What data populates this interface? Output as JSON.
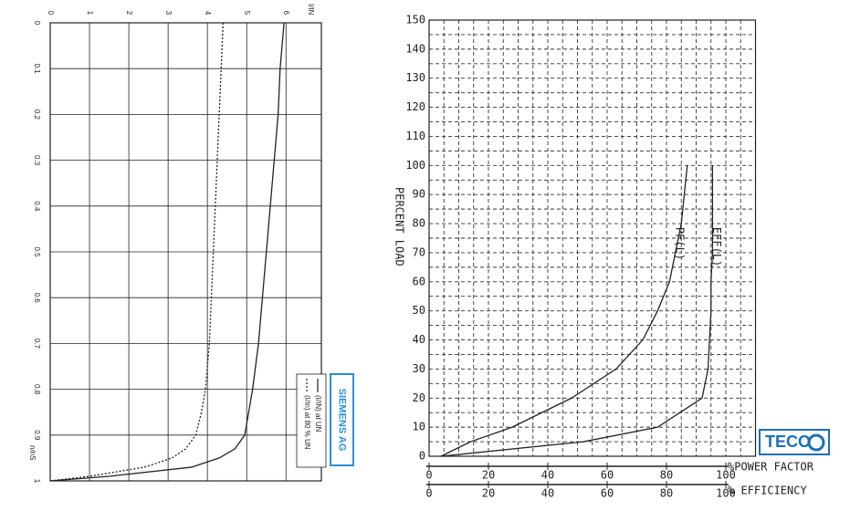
{
  "chart_data": [
    {
      "type": "line",
      "logo": "SIEMENS AG",
      "xlabel": "n/nS",
      "ylabel": "I/IN",
      "x": [
        0,
        0.1,
        0.2,
        0.3,
        0.4,
        0.5,
        0.6,
        0.7,
        0.8,
        0.85,
        0.9,
        0.93,
        0.95,
        0.97,
        0.99,
        1
      ],
      "series": [
        {
          "name": "(I/IN) at UN",
          "color": "#222222",
          "style": "solid",
          "values": [
            5.95,
            5.85,
            5.8,
            5.7,
            5.6,
            5.5,
            5.4,
            5.3,
            5.15,
            5.05,
            4.95,
            4.7,
            4.3,
            3.6,
            1.5,
            0
          ]
        },
        {
          "name": "(I/In) at 80 % UN",
          "color": "#222222",
          "style": "dotted",
          "values": [
            4.4,
            4.35,
            4.3,
            4.25,
            4.2,
            4.15,
            4.1,
            4.05,
            3.95,
            3.85,
            3.7,
            3.45,
            3.1,
            2.4,
            1.0,
            0
          ]
        }
      ],
      "xlim": [
        0,
        1
      ],
      "xticks": [
        0,
        0.1,
        0.2,
        0.3,
        0.4,
        0.5,
        0.6,
        0.7,
        0.8,
        0.9,
        1
      ],
      "ylim": [
        0,
        6.9
      ],
      "yticks": [
        0,
        1,
        2,
        3,
        4,
        5,
        6
      ],
      "grid": true,
      "grid_style": "solid",
      "legend": "lower right"
    },
    {
      "type": "line",
      "logo": "TECO",
      "xlabel": "PERCENT LOAD",
      "ylabel": "%POWER FACTOR",
      "y2label": "% EFFICIENCY",
      "x": [
        0,
        5,
        10,
        20,
        30,
        40,
        50,
        60,
        70,
        80,
        90,
        100
      ],
      "series": [
        {
          "name": "PF(L)",
          "color": "#222222",
          "style": "solid",
          "values": [
            4,
            14,
            28,
            48,
            63,
            72,
            77,
            81,
            83,
            85,
            86,
            87
          ]
        },
        {
          "name": "EFF(L)",
          "color": "#222222",
          "style": "solid",
          "axis": "y2",
          "values": [
            4,
            52,
            77,
            92,
            94,
            94.5,
            95,
            95,
            95.5,
            95.5,
            95.5,
            95.5
          ]
        }
      ],
      "xlim": [
        0,
        150
      ],
      "xticks": [
        0,
        10,
        20,
        30,
        40,
        50,
        60,
        70,
        80,
        90,
        100,
        110,
        120,
        130,
        140,
        150
      ],
      "ylim": [
        0,
        110
      ],
      "yticks": [
        0,
        20,
        40,
        60,
        80,
        100
      ],
      "y2lim": [
        0,
        110
      ],
      "y2ticks": [
        0,
        20,
        40,
        60,
        80,
        100
      ],
      "grid": true,
      "grid_style": "dashed"
    }
  ]
}
